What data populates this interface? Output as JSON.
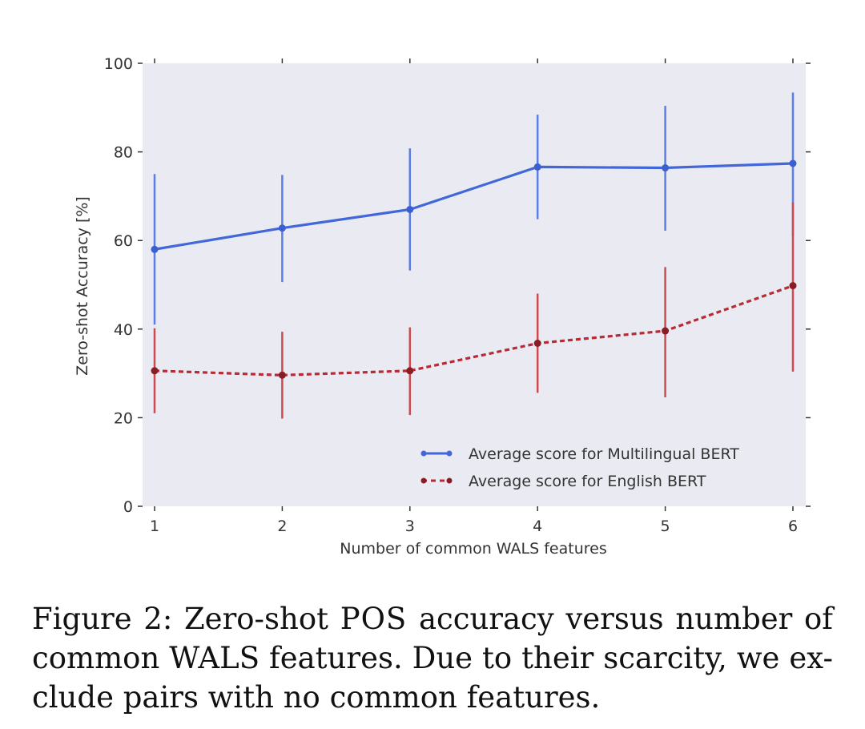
{
  "chart_data": {
    "type": "line",
    "title": "",
    "xlabel": "Number of common WALS features",
    "ylabel": "Zero-shot Accuracy [%]",
    "x": [
      1,
      2,
      3,
      4,
      5,
      6
    ],
    "x_tick_labels": [
      "1",
      "2",
      "3",
      "4",
      "5",
      "6"
    ],
    "y_tick_labels": [
      "0",
      "20",
      "40",
      "60",
      "80",
      "100"
    ],
    "xlim": [
      1,
      6
    ],
    "ylim": [
      0,
      100
    ],
    "grid": false,
    "legend_position": "lower-right",
    "series": [
      {
        "name": "Average score for Multilingual BERT",
        "color": "#4267d9",
        "linestyle": "solid",
        "values": [
          58,
          62.8,
          67,
          76.6,
          76.4,
          77.4
        ],
        "error_low": [
          41,
          50.6,
          53.2,
          64.8,
          62.2,
          61
        ],
        "error_high": [
          75,
          74.8,
          80.8,
          88.4,
          90.4,
          93.4
        ]
      },
      {
        "name": "Average score for English BERT",
        "color": "#b72b34",
        "linestyle": "dashed",
        "values": [
          30.6,
          29.6,
          30.6,
          36.8,
          39.6,
          49.8
        ],
        "error_low": [
          21,
          19.8,
          20.6,
          25.6,
          24.6,
          30.4
        ],
        "error_high": [
          40.2,
          39.4,
          40.4,
          48,
          54,
          68.6
        ]
      }
    ]
  },
  "caption": {
    "line1_a": "Figure 2:  Zero-shot ",
    "line1_sc": "POS",
    "line1_b": " accuracy versus number of",
    "line2": "common WALS features. Due to their scarcity, we ex-",
    "line3": "clude pairs with no common features."
  }
}
